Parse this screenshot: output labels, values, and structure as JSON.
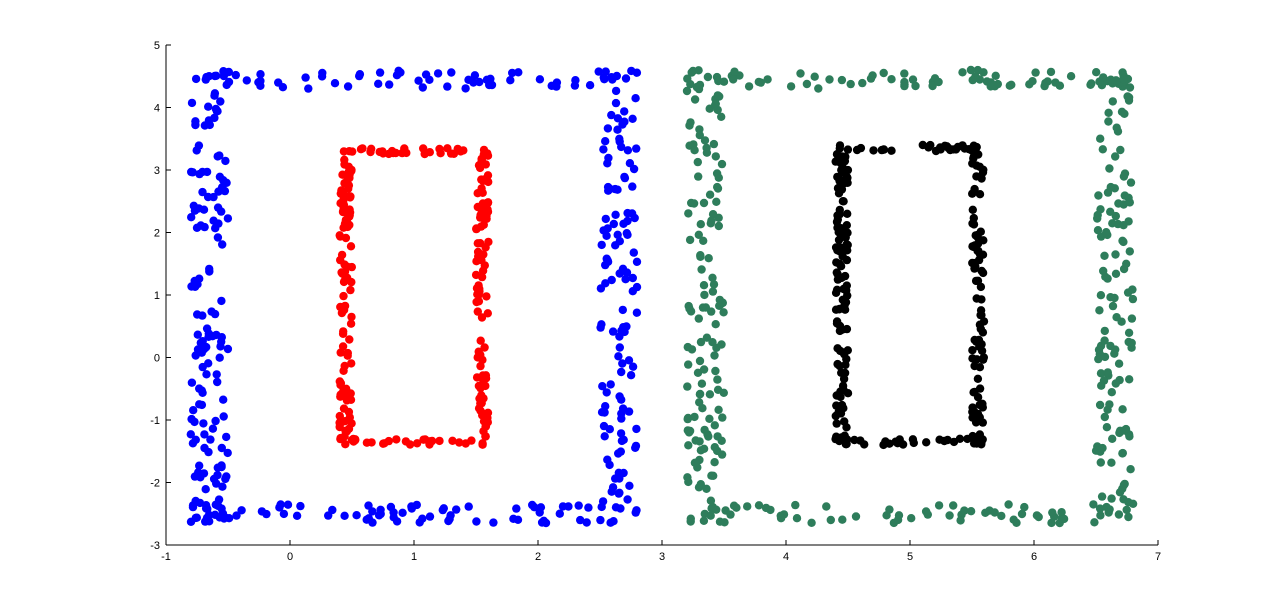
{
  "chart_data": {
    "type": "scatter",
    "title": "",
    "xlabel": "",
    "ylabel": "",
    "xlim": [
      -1,
      7
    ],
    "ylim": [
      -3,
      5
    ],
    "x_ticks": [
      "-1",
      "0",
      "1",
      "2",
      "3",
      "4",
      "5",
      "6",
      "7"
    ],
    "y_ticks": [
      "-3",
      "-2",
      "-1",
      "0",
      "1",
      "2",
      "3",
      "4",
      "5"
    ],
    "grid": false,
    "legend": "none",
    "series": [
      {
        "color": "#0000ff",
        "shape": "rectangular ring",
        "x_range": [
          -0.8,
          2.8
        ],
        "y_range": [
          -2.65,
          4.6
        ],
        "band": 0.3,
        "point_count": 400
      },
      {
        "color": "#ff0000",
        "shape": "rectangular ring",
        "x_range": [
          0.4,
          1.6
        ],
        "y_range": [
          -1.4,
          3.35
        ],
        "band": 0.1,
        "point_count": 260
      },
      {
        "color": "#2e7d5b",
        "shape": "rectangular ring",
        "x_range": [
          3.2,
          6.8
        ],
        "y_range": [
          -2.65,
          4.6
        ],
        "band": 0.3,
        "point_count": 400
      },
      {
        "color": "#000000",
        "shape": "rectangular ring",
        "x_range": [
          4.4,
          5.6
        ],
        "y_range": [
          -1.4,
          3.4
        ],
        "band": 0.1,
        "point_count": 260
      }
    ]
  }
}
